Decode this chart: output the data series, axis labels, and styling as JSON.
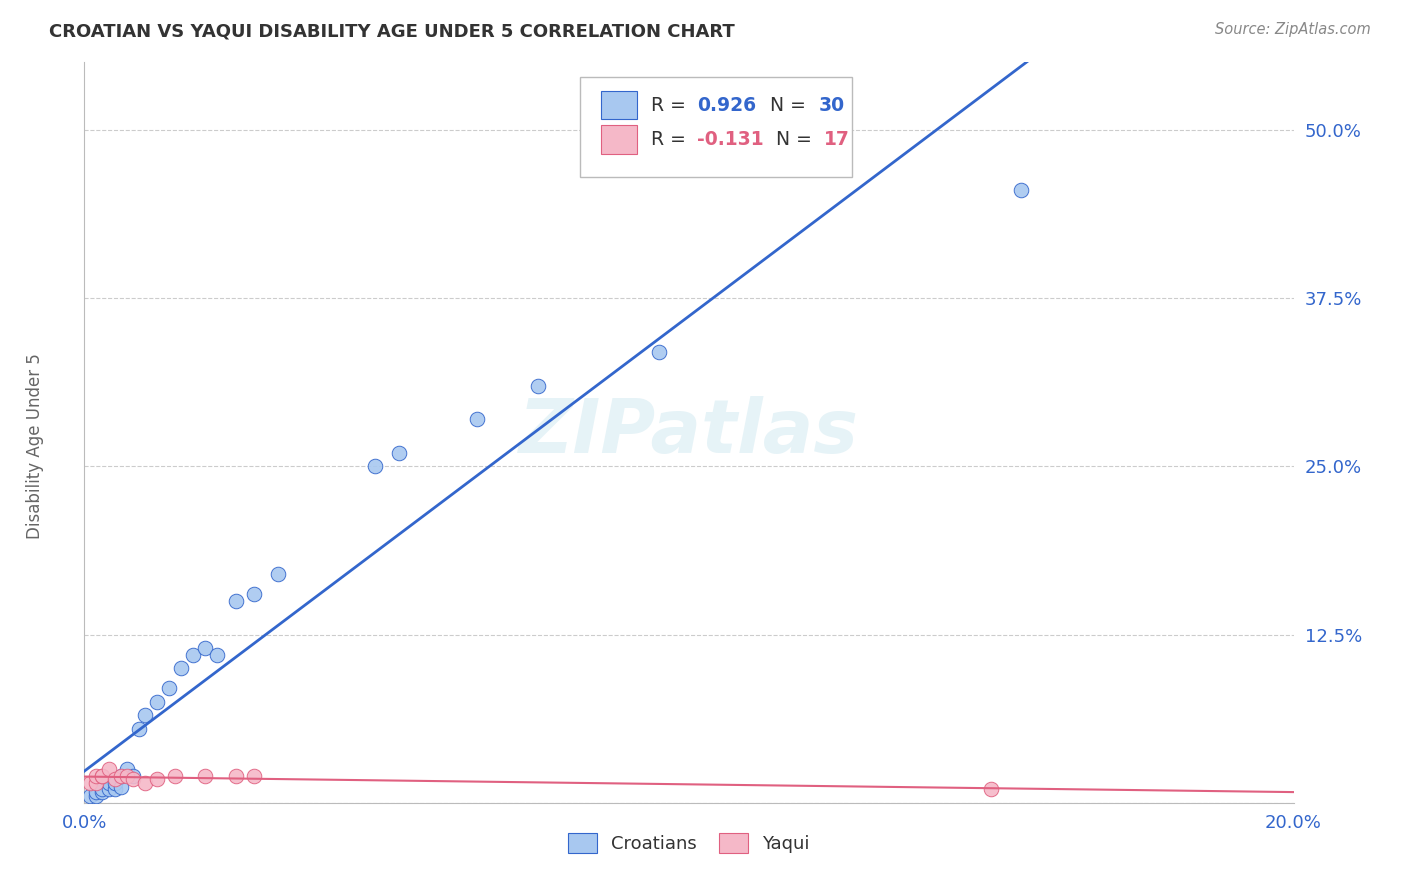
{
  "title": "CROATIAN VS YAQUI DISABILITY AGE UNDER 5 CORRELATION CHART",
  "source": "Source: ZipAtlas.com",
  "xlabel_croatians": "Croatians",
  "xlabel_yaqui": "Yaqui",
  "ylabel": "Disability Age Under 5",
  "xlim": [
    0.0,
    0.2
  ],
  "ylim": [
    0.0,
    0.55
  ],
  "xticks": [
    0.0,
    0.05,
    0.1,
    0.15,
    0.2
  ],
  "xtick_labels": [
    "0.0%",
    "",
    "",
    "",
    "20.0%"
  ],
  "yticks": [
    0.0,
    0.125,
    0.25,
    0.375,
    0.5
  ],
  "ytick_labels": [
    "",
    "12.5%",
    "25.0%",
    "37.5%",
    "50.0%"
  ],
  "r_croatian": 0.926,
  "n_croatian": 30,
  "r_yaqui": -0.131,
  "n_yaqui": 17,
  "croatian_color": "#A8C8F0",
  "croatian_line_color": "#3366CC",
  "yaqui_color": "#F5B8C8",
  "yaqui_line_color": "#E06080",
  "croatian_x": [
    0.001,
    0.002,
    0.002,
    0.003,
    0.003,
    0.004,
    0.004,
    0.005,
    0.005,
    0.006,
    0.006,
    0.007,
    0.008,
    0.009,
    0.01,
    0.012,
    0.014,
    0.016,
    0.018,
    0.02,
    0.022,
    0.025,
    0.028,
    0.032,
    0.048,
    0.052,
    0.065,
    0.075,
    0.095,
    0.155
  ],
  "croatian_y": [
    0.005,
    0.005,
    0.008,
    0.008,
    0.01,
    0.01,
    0.015,
    0.01,
    0.015,
    0.012,
    0.02,
    0.025,
    0.02,
    0.055,
    0.065,
    0.075,
    0.085,
    0.1,
    0.11,
    0.115,
    0.11,
    0.15,
    0.155,
    0.17,
    0.25,
    0.26,
    0.285,
    0.31,
    0.335,
    0.455
  ],
  "yaqui_x": [
    0.001,
    0.002,
    0.002,
    0.003,
    0.003,
    0.004,
    0.005,
    0.006,
    0.007,
    0.008,
    0.01,
    0.012,
    0.015,
    0.02,
    0.025,
    0.028,
    0.15
  ],
  "yaqui_y": [
    0.015,
    0.015,
    0.02,
    0.02,
    0.02,
    0.025,
    0.018,
    0.02,
    0.02,
    0.018,
    0.015,
    0.018,
    0.02,
    0.02,
    0.02,
    0.02,
    0.01
  ],
  "watermark": "ZIPatlas",
  "background_color": "#FFFFFF",
  "grid_color": "#CCCCCC"
}
